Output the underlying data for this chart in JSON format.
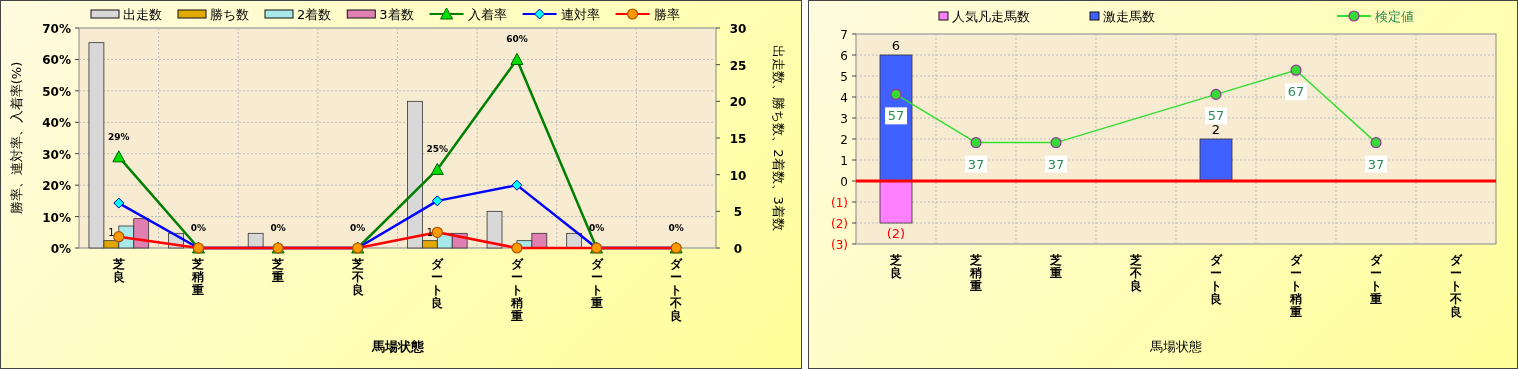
{
  "chart_data": [
    {
      "type": "bar",
      "xlabel": "馬場状態",
      "ylabel": "勝率、連対率、入着率(%)",
      "y2label": "出走数、勝ち数、2着数、3着数",
      "categories": [
        "芝良",
        "芝稍重",
        "芝重",
        "芝不良",
        "ダート良",
        "ダート稍重",
        "ダート重",
        "ダート不良"
      ],
      "series": [
        {
          "name": "出走数",
          "axis": "y2",
          "color": "#d8d8d8",
          "values": [
            28,
            2,
            2,
            0,
            20,
            5,
            2,
            0
          ]
        },
        {
          "name": "勝ち数",
          "axis": "y2",
          "color": "#e0a800",
          "values": [
            1,
            0,
            0,
            0,
            1,
            0,
            0,
            0
          ],
          "value_labels": [
            "1",
            null,
            null,
            null,
            "1",
            null,
            null,
            null
          ]
        },
        {
          "name": "2着数",
          "axis": "y2",
          "color": "#a8e8e8",
          "values": [
            3,
            0,
            0,
            0,
            2,
            1,
            0,
            0
          ]
        },
        {
          "name": "3着数",
          "axis": "y2",
          "color": "#e080b0",
          "values": [
            4,
            0,
            0,
            0,
            2,
            2,
            0,
            0
          ]
        },
        {
          "name": "入着率",
          "type": "line",
          "color": "#008000",
          "marker": "triangle",
          "values": [
            29,
            0,
            0,
            0,
            25,
            60,
            0,
            0
          ],
          "value_labels": [
            "29%",
            "0%",
            "0%",
            "0%",
            "25%",
            "60%",
            "0%",
            "0%"
          ]
        },
        {
          "name": "連対率",
          "type": "line",
          "color": "#0000ff",
          "marker": "diamond",
          "values": [
            14.3,
            0,
            0,
            0,
            15,
            20,
            0,
            0
          ]
        },
        {
          "name": "勝率",
          "type": "line",
          "color": "#ff0000",
          "marker": "circle",
          "values": [
            3.6,
            0,
            0,
            0,
            5,
            0,
            0,
            0
          ]
        }
      ],
      "ylim": [
        0,
        70
      ],
      "yticks": [
        {
          "value": 0,
          "label": "0%"
        },
        {
          "value": 10,
          "label": "10%"
        },
        {
          "value": 20,
          "label": "20%"
        },
        {
          "value": 30,
          "label": "30%"
        },
        {
          "value": 40,
          "label": "40%"
        },
        {
          "value": 50,
          "label": "50%"
        },
        {
          "value": 60,
          "label": "60%"
        },
        {
          "value": 70,
          "label": "70%"
        }
      ],
      "y2lim": [
        0,
        30
      ],
      "y2ticks": [
        0,
        5,
        10,
        15,
        20,
        25,
        30
      ],
      "grid": true,
      "legend": "top"
    },
    {
      "type": "bar",
      "xlabel": "馬場状態",
      "stacked": true,
      "categories": [
        "芝良",
        "芝稍重",
        "芝重",
        "芝不良",
        "ダート良",
        "ダート稍重",
        "ダート重",
        "ダート不良"
      ],
      "series": [
        {
          "name": "人気凡走馬数",
          "color": "#ff80ff",
          "values": [
            -2,
            0,
            0,
            0,
            0,
            0,
            0,
            0
          ],
          "value_labels": [
            "(2)",
            null,
            null,
            null,
            null,
            null,
            null,
            null
          ]
        },
        {
          "name": "激走馬数",
          "color": "#4060ff",
          "values": [
            6,
            0,
            0,
            0,
            2,
            0,
            0,
            0
          ],
          "value_labels": [
            "6",
            null,
            null,
            null,
            "2",
            null,
            null,
            null
          ]
        },
        {
          "name": "検定値",
          "type": "line",
          "axis": "y2",
          "color": "#33dd33",
          "marker": "circle",
          "values": [
            57,
            37,
            37,
            null,
            57,
            67,
            37,
            null
          ],
          "value_labels": [
            "57",
            "37",
            "37",
            null,
            "57",
            "67",
            "37",
            null
          ]
        }
      ],
      "ylim": [
        -3,
        7
      ],
      "yticks": [
        {
          "value": -3,
          "label": "(3)"
        },
        {
          "value": -2,
          "label": "(2)"
        },
        {
          "value": -1,
          "label": "(1)"
        },
        0,
        1,
        2,
        3,
        4,
        5,
        6,
        7
      ],
      "y2lim": [
        -5,
        82
      ],
      "ref_lines": [
        {
          "axis": "y",
          "value": 0,
          "color": "#ff0000"
        }
      ],
      "grid": true,
      "legend": "top"
    }
  ]
}
